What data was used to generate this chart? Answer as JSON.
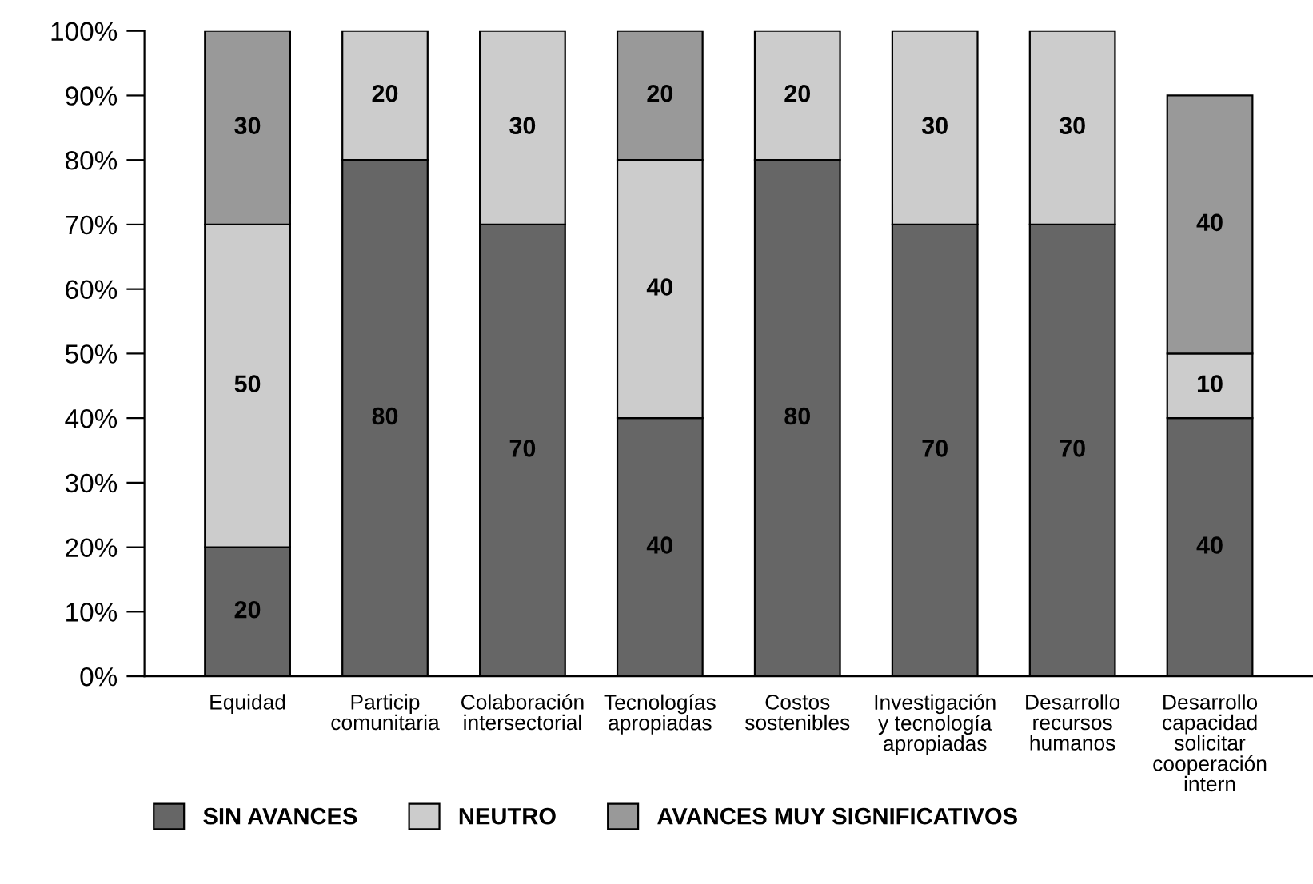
{
  "chart_data": {
    "type": "bar",
    "stacked": true,
    "data_labels": true,
    "legend": "bottom left",
    "grid": false,
    "categories": [
      "Equidad",
      "Particip\ncomunitaria",
      "Colaboración\nintersectorial",
      "Tecnologías\napropiadas",
      "Costos\nsostenibles",
      "Investigación\ny tecnología\napropiadas",
      "Desarrollo\nrecursos\nhumanos",
      "Desarrollo\ncapacidad\nsolicitar\ncooperación\nintern"
    ],
    "series": [
      {
        "name": "SIN AVANCES",
        "color": "#666666",
        "values": [
          20,
          80,
          70,
          40,
          80,
          70,
          70,
          40
        ]
      },
      {
        "name": "NEUTRO",
        "color": "#cccccc",
        "values": [
          50,
          20,
          30,
          40,
          20,
          30,
          30,
          10
        ]
      },
      {
        "name": "AVANCES MUY SIGNIFICATIVOS",
        "color": "#999999",
        "values": [
          30,
          null,
          null,
          20,
          null,
          null,
          null,
          40
        ]
      }
    ],
    "ylim": [
      0,
      100
    ],
    "yticks": [
      {
        "value": 0,
        "label": "0%"
      },
      {
        "value": 10,
        "label": "10%"
      },
      {
        "value": 20,
        "label": "20%"
      },
      {
        "value": 30,
        "label": "30%"
      },
      {
        "value": 40,
        "label": "40%"
      },
      {
        "value": 50,
        "label": "50%"
      },
      {
        "value": 60,
        "label": "60%"
      },
      {
        "value": 70,
        "label": "70%"
      },
      {
        "value": 80,
        "label": "80%"
      },
      {
        "value": 90,
        "label": "90%"
      },
      {
        "value": 100,
        "label": "100%"
      }
    ]
  }
}
